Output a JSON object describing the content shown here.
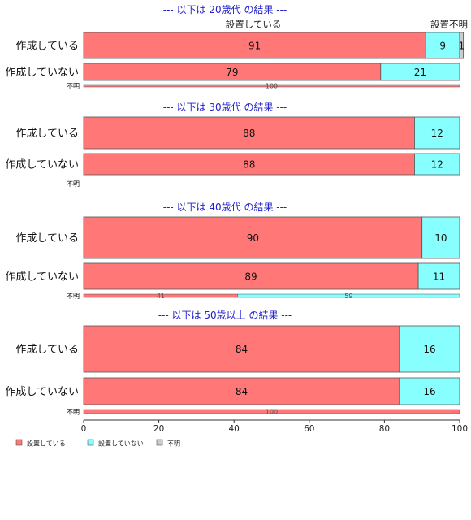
{
  "chart_data": {
    "type": "bar",
    "orientation": "horizontal",
    "stacked": true,
    "percent": true,
    "xlim": [
      0,
      100
    ],
    "x_ticks": [
      0,
      20,
      40,
      60,
      80,
      100
    ],
    "grid": false,
    "legend_position": "bottom-left",
    "series_names": [
      "設置している",
      "設置していない",
      "不明"
    ],
    "colors": {
      "設置している": "#ff7777",
      "設置していない": "#88ffff",
      "不明": "#cccccc",
      "title": "#2222cc"
    },
    "top_labels": [
      "設置している",
      "設置不明"
    ],
    "panels": [
      {
        "title": "--- 以下は 20歳代 の結果 ---",
        "rows": [
          {
            "label": "作成している",
            "values": [
              91,
              9,
              1
            ],
            "labels": [
              "91",
              "9",
              "1"
            ]
          },
          {
            "label": "作成していない",
            "values": [
              79,
              21,
              0
            ],
            "labels": [
              "79",
              "21",
              ""
            ]
          },
          {
            "label": "不明",
            "values": [
              100,
              0,
              0
            ],
            "labels": [
              "100",
              "",
              ""
            ]
          }
        ]
      },
      {
        "title": "--- 以下は 30歳代 の結果 ---",
        "rows": [
          {
            "label": "作成している",
            "values": [
              88,
              12,
              0
            ],
            "labels": [
              "88",
              "12",
              ""
            ]
          },
          {
            "label": "作成していない",
            "values": [
              88,
              12,
              0
            ],
            "labels": [
              "88",
              "12",
              ""
            ]
          },
          {
            "label": "不明",
            "values": [
              0,
              0,
              0
            ],
            "labels": [
              "",
              "",
              ""
            ]
          }
        ]
      },
      {
        "title": "--- 以下は 40歳代 の結果 ---",
        "rows": [
          {
            "label": "作成している",
            "values": [
              90,
              10,
              0
            ],
            "labels": [
              "90",
              "10",
              ""
            ]
          },
          {
            "label": "作成していない",
            "values": [
              89,
              11,
              0
            ],
            "labels": [
              "89",
              "11",
              ""
            ]
          },
          {
            "label": "不明",
            "values": [
              41,
              59,
              0
            ],
            "labels": [
              "41",
              "59",
              ""
            ]
          }
        ]
      },
      {
        "title": "--- 以下は 50歳以上 の結果 ---",
        "rows": [
          {
            "label": "作成している",
            "values": [
              84,
              16,
              0
            ],
            "labels": [
              "84",
              "16",
              ""
            ]
          },
          {
            "label": "作成していない",
            "values": [
              84,
              16,
              0
            ],
            "labels": [
              "84",
              "16",
              ""
            ]
          },
          {
            "label": "不明",
            "values": [
              100,
              0,
              0
            ],
            "labels": [
              "100",
              "",
              ""
            ]
          }
        ]
      }
    ]
  }
}
